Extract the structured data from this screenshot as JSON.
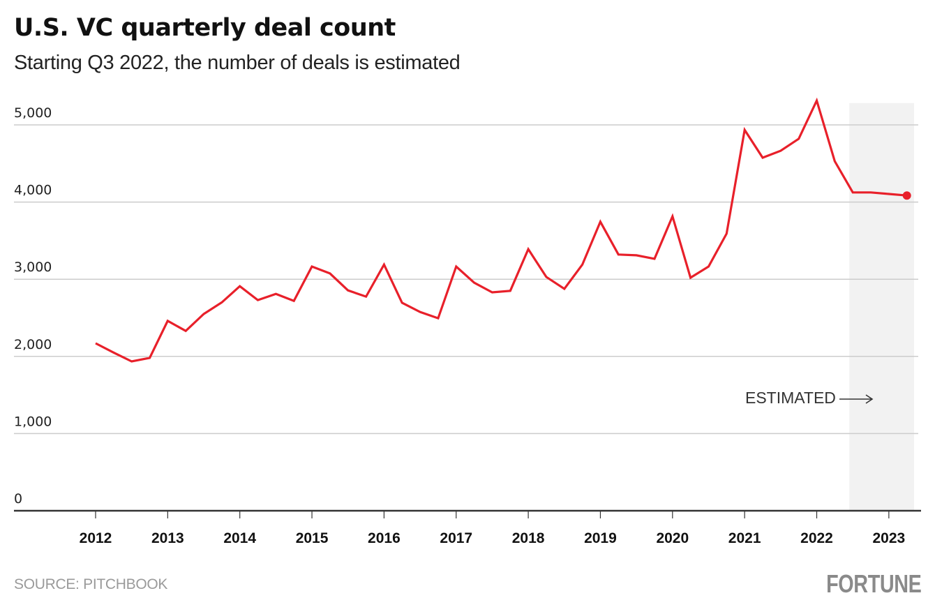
{
  "header": {
    "title": "U.S. VC quarterly deal count",
    "subtitle": "Starting Q3 2022, the number of deals is estimated"
  },
  "footer": {
    "source": "SOURCE: PITCHBOOK",
    "brand": "FORTUNE"
  },
  "colors": {
    "line": "#e8202a",
    "grid": "#cccccc",
    "axis": "#333333",
    "estimated_band": "#f2f2f2"
  },
  "chart_data": {
    "type": "line",
    "title": "U.S. VC quarterly deal count",
    "subtitle": "Starting Q3 2022, the number of deals is estimated",
    "xlabel": "",
    "ylabel": "",
    "ylim": [
      0,
      5300
    ],
    "y_ticks": [
      0,
      1000,
      2000,
      3000,
      4000,
      5000
    ],
    "y_tick_labels": [
      "0",
      "1,000",
      "2,000",
      "3,000",
      "4,000",
      "5,000"
    ],
    "x_tick_labels": [
      "2012",
      "2013",
      "2014",
      "2015",
      "2016",
      "2017",
      "2018",
      "2019",
      "2020",
      "2021",
      "2022",
      "2023"
    ],
    "grid": true,
    "legend": "none",
    "annotation": {
      "text": "ESTIMATED",
      "arrow": "right",
      "estimated_from": "Q3 2022"
    },
    "x": [
      "Q1 2012",
      "Q2 2012",
      "Q3 2012",
      "Q4 2012",
      "Q1 2013",
      "Q2 2013",
      "Q3 2013",
      "Q4 2013",
      "Q1 2014",
      "Q2 2014",
      "Q3 2014",
      "Q4 2014",
      "Q1 2015",
      "Q2 2015",
      "Q3 2015",
      "Q4 2015",
      "Q1 2016",
      "Q2 2016",
      "Q3 2016",
      "Q4 2016",
      "Q1 2017",
      "Q2 2017",
      "Q3 2017",
      "Q4 2017",
      "Q1 2018",
      "Q2 2018",
      "Q3 2018",
      "Q4 2018",
      "Q1 2019",
      "Q2 2019",
      "Q3 2019",
      "Q4 2019",
      "Q1 2020",
      "Q2 2020",
      "Q3 2020",
      "Q4 2020",
      "Q1 2021",
      "Q2 2021",
      "Q3 2021",
      "Q4 2021",
      "Q1 2022",
      "Q2 2022",
      "Q3 2022",
      "Q4 2022",
      "Q1 2023",
      "Q2 2023"
    ],
    "series": [
      {
        "name": "Deal count",
        "values": [
          2170,
          2050,
          1935,
          1980,
          2460,
          2330,
          2550,
          2700,
          2910,
          2730,
          2810,
          2720,
          3165,
          3075,
          2855,
          2775,
          3190,
          2695,
          2575,
          2495,
          3165,
          2955,
          2830,
          2850,
          3390,
          3030,
          2875,
          3190,
          3745,
          3320,
          3310,
          3265,
          3815,
          3020,
          3165,
          3590,
          4935,
          4575,
          4665,
          4820,
          5315,
          4530,
          4125,
          4125,
          4105,
          4085
        ]
      }
    ]
  }
}
